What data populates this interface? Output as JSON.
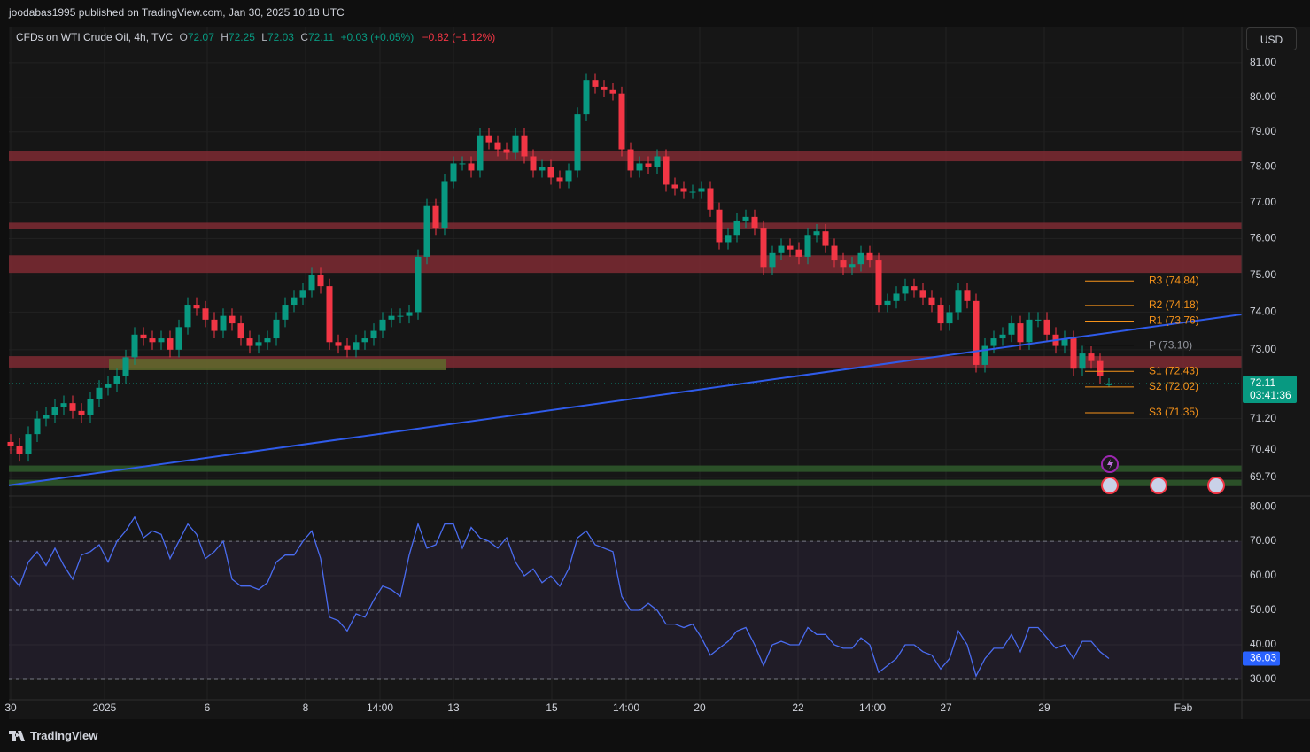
{
  "header": {
    "publisher": "joodabas1995 published on TradingView.com, Jan 30, 2025 10:18 UTC"
  },
  "footer": {
    "brand": "TradingView"
  },
  "chart_data": [
    {
      "type": "candlestick",
      "title": "CFDs on WTI Crude Oil, 4h, TVC",
      "legend_labels": [
        "O",
        "H",
        "L",
        "C"
      ],
      "change": "+0.03 (+0.05%)",
      "change_day": "−0.82 (−1.12%)",
      "currency": "USD",
      "countdown": "03:41:36",
      "log": true,
      "grid": true,
      "up_color": "#089981",
      "down_color": "#f23645",
      "xlim": [
        -0.2,
        139
      ],
      "ylim": [
        69.23,
        82.07
      ],
      "yticks": [
        {
          "value": 81,
          "label": "81.00"
        },
        {
          "value": 80,
          "label": "80.00"
        },
        {
          "value": 79,
          "label": "79.00"
        },
        {
          "value": 78,
          "label": "78.00"
        },
        {
          "value": 77,
          "label": "77.00"
        },
        {
          "value": 76,
          "label": "76.00"
        },
        {
          "value": 75,
          "label": "75.00"
        },
        {
          "value": 74,
          "label": "74.00"
        },
        {
          "value": 73,
          "label": "73.00"
        },
        {
          "value": 71.2,
          "label": "71.20"
        },
        {
          "value": 70.4,
          "label": "70.40"
        },
        {
          "value": 69.7,
          "label": "69.70"
        }
      ],
      "open": [
        70.6,
        70.5,
        70.3,
        70.8,
        71.2,
        71.3,
        71.5,
        71.6,
        71.4,
        71.3,
        71.7,
        72.0,
        72.1,
        72.3,
        72.8,
        73.4,
        73.3,
        73.2,
        73.3,
        73.0,
        73.6,
        74.2,
        74.1,
        73.8,
        73.5,
        73.9,
        73.7,
        73.3,
        73.1,
        73.2,
        73.3,
        73.8,
        74.2,
        74.4,
        74.6,
        75.0,
        74.7,
        73.2,
        73.1,
        73.0,
        73.2,
        73.3,
        73.5,
        73.8,
        73.9,
        73.9,
        74.0,
        75.5,
        76.9,
        76.3,
        77.6,
        78.1,
        78.1,
        77.9,
        78.9,
        78.7,
        78.5,
        78.4,
        78.9,
        78.3,
        77.9,
        78.0,
        77.7,
        77.6,
        77.9,
        79.5,
        80.5,
        80.3,
        80.2,
        80.1,
        78.5,
        77.9,
        78.1,
        78.0,
        78.3,
        77.5,
        77.4,
        77.3,
        77.3,
        77.4,
        76.8,
        75.9,
        76.1,
        76.5,
        76.6,
        76.3,
        75.2,
        75.6,
        75.8,
        75.7,
        75.5,
        76.1,
        76.2,
        75.8,
        75.4,
        75.2,
        75.3,
        75.6,
        75.4,
        74.2,
        74.3,
        74.5,
        74.7,
        74.6,
        74.4,
        74.2,
        73.7,
        74.0,
        74.6,
        74.3,
        72.6,
        73.1,
        73.3,
        73.4,
        73.7,
        73.2,
        73.8,
        73.8,
        73.4,
        73.1,
        73.3,
        72.5,
        72.9,
        72.7,
        72.07
      ],
      "high": [
        70.8,
        70.7,
        71.0,
        71.4,
        71.5,
        71.7,
        71.8,
        71.8,
        71.6,
        71.9,
        72.2,
        72.3,
        72.5,
        73.0,
        73.6,
        73.6,
        73.5,
        73.5,
        73.5,
        73.8,
        74.4,
        74.4,
        74.3,
        74.0,
        74.1,
        74.1,
        73.9,
        73.5,
        73.4,
        73.5,
        74.0,
        74.4,
        74.6,
        74.8,
        75.2,
        75.2,
        74.9,
        73.4,
        73.3,
        73.4,
        73.5,
        73.7,
        74.0,
        74.1,
        74.1,
        74.2,
        75.7,
        77.1,
        77.1,
        77.8,
        78.3,
        78.3,
        78.3,
        79.1,
        79.1,
        78.9,
        78.7,
        79.1,
        79.1,
        78.5,
        78.2,
        78.2,
        77.9,
        78.1,
        79.7,
        80.7,
        80.7,
        80.5,
        80.4,
        80.3,
        78.7,
        78.3,
        78.3,
        78.5,
        78.5,
        77.7,
        77.6,
        77.5,
        77.6,
        77.6,
        77.0,
        76.3,
        76.7,
        76.8,
        76.8,
        76.5,
        75.8,
        76.0,
        76.0,
        75.9,
        76.3,
        76.4,
        76.4,
        76.0,
        75.6,
        75.5,
        75.8,
        75.8,
        75.6,
        74.5,
        74.7,
        74.9,
        74.9,
        74.8,
        74.6,
        74.4,
        74.2,
        74.8,
        74.8,
        74.5,
        73.3,
        73.5,
        73.6,
        73.9,
        73.9,
        74.0,
        74.0,
        74.0,
        73.6,
        73.5,
        73.5,
        73.1,
        73.1,
        72.9,
        72.25
      ],
      "low": [
        70.3,
        70.1,
        70.1,
        70.6,
        71.0,
        71.1,
        71.3,
        71.2,
        71.1,
        71.1,
        71.5,
        71.8,
        71.9,
        72.1,
        72.6,
        73.1,
        73.0,
        73.0,
        72.8,
        72.8,
        73.4,
        73.9,
        73.6,
        73.3,
        73.3,
        73.5,
        73.1,
        72.9,
        72.9,
        73.0,
        73.1,
        73.6,
        74.0,
        74.2,
        74.4,
        74.5,
        73.0,
        72.9,
        72.8,
        72.8,
        73.0,
        73.1,
        73.3,
        73.6,
        73.7,
        73.7,
        73.8,
        75.3,
        76.1,
        76.1,
        77.4,
        77.9,
        77.7,
        77.7,
        78.5,
        78.3,
        78.2,
        78.2,
        78.1,
        77.7,
        77.7,
        77.5,
        77.4,
        77.4,
        77.7,
        79.3,
        80.1,
        80.0,
        79.9,
        78.3,
        77.7,
        77.7,
        77.8,
        77.8,
        77.3,
        77.2,
        77.1,
        77.1,
        77.1,
        76.6,
        75.7,
        75.7,
        75.9,
        76.3,
        76.1,
        75.0,
        75.0,
        75.4,
        75.5,
        75.3,
        75.3,
        75.9,
        75.6,
        75.2,
        75.0,
        75.0,
        75.1,
        75.2,
        74.0,
        74.0,
        74.1,
        74.3,
        74.4,
        74.2,
        74.0,
        73.5,
        73.5,
        73.8,
        74.1,
        72.4,
        72.4,
        72.9,
        73.1,
        73.2,
        73.0,
        73.0,
        73.6,
        73.2,
        72.9,
        72.9,
        72.3,
        72.3,
        72.5,
        72.1,
        72.03
      ],
      "close": [
        70.5,
        70.3,
        70.8,
        71.2,
        71.3,
        71.5,
        71.6,
        71.4,
        71.3,
        71.7,
        72.0,
        72.1,
        72.3,
        72.8,
        73.4,
        73.3,
        73.2,
        73.3,
        73.0,
        73.6,
        74.2,
        74.1,
        73.8,
        73.5,
        73.9,
        73.7,
        73.3,
        73.1,
        73.2,
        73.3,
        73.8,
        74.2,
        74.4,
        74.6,
        75.0,
        74.7,
        73.2,
        73.1,
        73.0,
        73.2,
        73.3,
        73.5,
        73.8,
        73.9,
        73.9,
        74.0,
        75.5,
        76.9,
        76.3,
        77.6,
        78.1,
        78.1,
        77.9,
        78.9,
        78.7,
        78.5,
        78.4,
        78.9,
        78.3,
        77.9,
        78.0,
        77.7,
        77.6,
        77.9,
        79.5,
        80.5,
        80.3,
        80.2,
        80.1,
        78.5,
        77.9,
        78.1,
        78.0,
        78.3,
        77.5,
        77.4,
        77.3,
        77.3,
        77.4,
        76.8,
        75.9,
        76.1,
        76.5,
        76.6,
        76.3,
        75.2,
        75.6,
        75.8,
        75.7,
        75.5,
        76.1,
        76.2,
        75.8,
        75.4,
        75.2,
        75.3,
        75.6,
        75.4,
        74.2,
        74.3,
        74.5,
        74.7,
        74.6,
        74.4,
        74.2,
        73.7,
        74.0,
        74.6,
        74.3,
        72.6,
        73.1,
        73.3,
        73.4,
        73.7,
        73.2,
        73.8,
        73.8,
        73.4,
        73.1,
        73.3,
        72.5,
        72.9,
        72.7,
        72.3,
        72.11
      ],
      "zones": [
        {
          "from": 78.16,
          "to": 78.44,
          "x": [
            -0.2,
            139
          ],
          "color": "#7e2a33"
        },
        {
          "from": 76.27,
          "to": 76.44,
          "x": [
            -0.2,
            139
          ],
          "color": "#7e2a33"
        },
        {
          "from": 75.06,
          "to": 75.54,
          "x": [
            -0.2,
            139
          ],
          "color": "#7e2a33"
        },
        {
          "from": 72.53,
          "to": 72.83,
          "x": [
            -0.2,
            139
          ],
          "color": "#7e2a33"
        },
        {
          "from": 72.46,
          "to": 72.76,
          "x": [
            11.1,
            49.1
          ],
          "color": "#5f6b2c"
        },
        {
          "from": 69.84,
          "to": 70.0,
          "x": [
            -0.2,
            139
          ],
          "color": "#2f5a2c"
        },
        {
          "from": 69.48,
          "to": 69.64,
          "x": [
            -0.2,
            139
          ],
          "color": "#2f5a2c"
        }
      ],
      "trendline": {
        "x": [
          -0.2,
          139
        ],
        "y": [
          69.5,
          73.94
        ],
        "color": "#2f5bea"
      },
      "pivots": {
        "x": [
          121.3,
          126.8
        ],
        "levels": [
          {
            "label": "R3 (74.84)",
            "value": 74.84,
            "color": "#f7931a"
          },
          {
            "label": "R2 (74.18)",
            "value": 74.18,
            "color": "#f7931a"
          },
          {
            "label": "R1 (73.76)",
            "value": 73.76,
            "color": "#f7931a"
          },
          {
            "label": "P (73.10)",
            "value": 73.1,
            "color": "#111111"
          },
          {
            "label": "S1 (72.43)",
            "value": 72.43,
            "color": "#f7931a"
          },
          {
            "label": "S2 (72.02)",
            "value": 72.02,
            "color": "#f7931a"
          },
          {
            "label": "S3 (71.35)",
            "value": 71.35,
            "color": "#f7931a"
          }
        ]
      }
    },
    {
      "type": "line",
      "color": "#4a6cf0",
      "grid": true,
      "xlim": [
        -0.2,
        139
      ],
      "xticks": [
        {
          "value": 0,
          "label": "30"
        },
        {
          "value": 10.6,
          "label": "2025"
        },
        {
          "value": 22.2,
          "label": "6"
        },
        {
          "value": 33.3,
          "label": "8"
        },
        {
          "value": 41.7,
          "label": "14:00"
        },
        {
          "value": 50,
          "label": "13"
        },
        {
          "value": 61.1,
          "label": "15"
        },
        {
          "value": 69.5,
          "label": "14:00"
        },
        {
          "value": 77.8,
          "label": "20"
        },
        {
          "value": 88.9,
          "label": "22"
        },
        {
          "value": 97.3,
          "label": "14:00"
        },
        {
          "value": 105.6,
          "label": "27"
        },
        {
          "value": 116.7,
          "label": "29"
        },
        {
          "value": 132.4,
          "label": "Feb"
        }
      ],
      "ylim": [
        24.1,
        83.1
      ],
      "yticks": [
        {
          "value": 80,
          "label": "80.00"
        },
        {
          "value": 70,
          "label": "70.00"
        },
        {
          "value": 60,
          "label": "60.00"
        },
        {
          "value": 50,
          "label": "50.00"
        },
        {
          "value": 40,
          "label": "40.00"
        },
        {
          "value": 30,
          "label": "30.00"
        }
      ],
      "levels": [
        70,
        50,
        30
      ],
      "band_color": "#7e57c2",
      "values": [
        60,
        57,
        64,
        67,
        63,
        68,
        63,
        59,
        66,
        67,
        69,
        64,
        70,
        73,
        77,
        71,
        73,
        72,
        65,
        70,
        75,
        72,
        65,
        67,
        70,
        59,
        57,
        57,
        56,
        58,
        64,
        66,
        66,
        70,
        73,
        65,
        48,
        47,
        44,
        49,
        48,
        53,
        57,
        56,
        54,
        66,
        75,
        68,
        69,
        75,
        75,
        68,
        74,
        71,
        70,
        68,
        71,
        64,
        60,
        62,
        58,
        60,
        57,
        62,
        71,
        73,
        69,
        68,
        67,
        54,
        50,
        50,
        52,
        50,
        46,
        46,
        45,
        46,
        42,
        37,
        39,
        41,
        44,
        45,
        40,
        34,
        40,
        41,
        40,
        40,
        45,
        43,
        43,
        40,
        39,
        39,
        42,
        40,
        32,
        34,
        36,
        40,
        40,
        38,
        37,
        33,
        36,
        44,
        40,
        31,
        36,
        39,
        39,
        43,
        38,
        45,
        45,
        42,
        39,
        40,
        36,
        41,
        41,
        38,
        36.03
      ]
    }
  ]
}
